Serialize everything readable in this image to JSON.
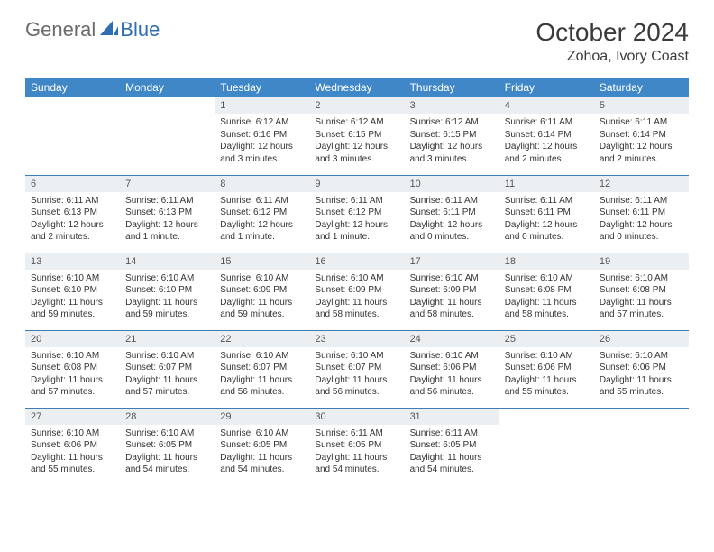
{
  "brand": {
    "part1": "General",
    "part2": "Blue"
  },
  "title": "October 2024",
  "location": "Zohoa, Ivory Coast",
  "colors": {
    "header_bg": "#3f87c6",
    "row_border": "#3f7db3",
    "daynum_bg": "#eceff1",
    "brand_gray": "#6b6b6b",
    "brand_blue": "#2f6fb0"
  },
  "day_headers": [
    "Sunday",
    "Monday",
    "Tuesday",
    "Wednesday",
    "Thursday",
    "Friday",
    "Saturday"
  ],
  "weeks": [
    [
      {
        "empty": true
      },
      {
        "empty": true
      },
      {
        "n": "1",
        "sunrise": "6:12 AM",
        "sunset": "6:16 PM",
        "daylight": "12 hours and 3 minutes."
      },
      {
        "n": "2",
        "sunrise": "6:12 AM",
        "sunset": "6:15 PM",
        "daylight": "12 hours and 3 minutes."
      },
      {
        "n": "3",
        "sunrise": "6:12 AM",
        "sunset": "6:15 PM",
        "daylight": "12 hours and 3 minutes."
      },
      {
        "n": "4",
        "sunrise": "6:11 AM",
        "sunset": "6:14 PM",
        "daylight": "12 hours and 2 minutes."
      },
      {
        "n": "5",
        "sunrise": "6:11 AM",
        "sunset": "6:14 PM",
        "daylight": "12 hours and 2 minutes."
      }
    ],
    [
      {
        "n": "6",
        "sunrise": "6:11 AM",
        "sunset": "6:13 PM",
        "daylight": "12 hours and 2 minutes."
      },
      {
        "n": "7",
        "sunrise": "6:11 AM",
        "sunset": "6:13 PM",
        "daylight": "12 hours and 1 minute."
      },
      {
        "n": "8",
        "sunrise": "6:11 AM",
        "sunset": "6:12 PM",
        "daylight": "12 hours and 1 minute."
      },
      {
        "n": "9",
        "sunrise": "6:11 AM",
        "sunset": "6:12 PM",
        "daylight": "12 hours and 1 minute."
      },
      {
        "n": "10",
        "sunrise": "6:11 AM",
        "sunset": "6:11 PM",
        "daylight": "12 hours and 0 minutes."
      },
      {
        "n": "11",
        "sunrise": "6:11 AM",
        "sunset": "6:11 PM",
        "daylight": "12 hours and 0 minutes."
      },
      {
        "n": "12",
        "sunrise": "6:11 AM",
        "sunset": "6:11 PM",
        "daylight": "12 hours and 0 minutes."
      }
    ],
    [
      {
        "n": "13",
        "sunrise": "6:10 AM",
        "sunset": "6:10 PM",
        "daylight": "11 hours and 59 minutes."
      },
      {
        "n": "14",
        "sunrise": "6:10 AM",
        "sunset": "6:10 PM",
        "daylight": "11 hours and 59 minutes."
      },
      {
        "n": "15",
        "sunrise": "6:10 AM",
        "sunset": "6:09 PM",
        "daylight": "11 hours and 59 minutes."
      },
      {
        "n": "16",
        "sunrise": "6:10 AM",
        "sunset": "6:09 PM",
        "daylight": "11 hours and 58 minutes."
      },
      {
        "n": "17",
        "sunrise": "6:10 AM",
        "sunset": "6:09 PM",
        "daylight": "11 hours and 58 minutes."
      },
      {
        "n": "18",
        "sunrise": "6:10 AM",
        "sunset": "6:08 PM",
        "daylight": "11 hours and 58 minutes."
      },
      {
        "n": "19",
        "sunrise": "6:10 AM",
        "sunset": "6:08 PM",
        "daylight": "11 hours and 57 minutes."
      }
    ],
    [
      {
        "n": "20",
        "sunrise": "6:10 AM",
        "sunset": "6:08 PM",
        "daylight": "11 hours and 57 minutes."
      },
      {
        "n": "21",
        "sunrise": "6:10 AM",
        "sunset": "6:07 PM",
        "daylight": "11 hours and 57 minutes."
      },
      {
        "n": "22",
        "sunrise": "6:10 AM",
        "sunset": "6:07 PM",
        "daylight": "11 hours and 56 minutes."
      },
      {
        "n": "23",
        "sunrise": "6:10 AM",
        "sunset": "6:07 PM",
        "daylight": "11 hours and 56 minutes."
      },
      {
        "n": "24",
        "sunrise": "6:10 AM",
        "sunset": "6:06 PM",
        "daylight": "11 hours and 56 minutes."
      },
      {
        "n": "25",
        "sunrise": "6:10 AM",
        "sunset": "6:06 PM",
        "daylight": "11 hours and 55 minutes."
      },
      {
        "n": "26",
        "sunrise": "6:10 AM",
        "sunset": "6:06 PM",
        "daylight": "11 hours and 55 minutes."
      }
    ],
    [
      {
        "n": "27",
        "sunrise": "6:10 AM",
        "sunset": "6:06 PM",
        "daylight": "11 hours and 55 minutes."
      },
      {
        "n": "28",
        "sunrise": "6:10 AM",
        "sunset": "6:05 PM",
        "daylight": "11 hours and 54 minutes."
      },
      {
        "n": "29",
        "sunrise": "6:10 AM",
        "sunset": "6:05 PM",
        "daylight": "11 hours and 54 minutes."
      },
      {
        "n": "30",
        "sunrise": "6:11 AM",
        "sunset": "6:05 PM",
        "daylight": "11 hours and 54 minutes."
      },
      {
        "n": "31",
        "sunrise": "6:11 AM",
        "sunset": "6:05 PM",
        "daylight": "11 hours and 54 minutes."
      },
      {
        "empty": true
      },
      {
        "empty": true
      }
    ]
  ],
  "labels": {
    "sunrise": "Sunrise: ",
    "sunset": "Sunset: ",
    "daylight": "Daylight: "
  }
}
